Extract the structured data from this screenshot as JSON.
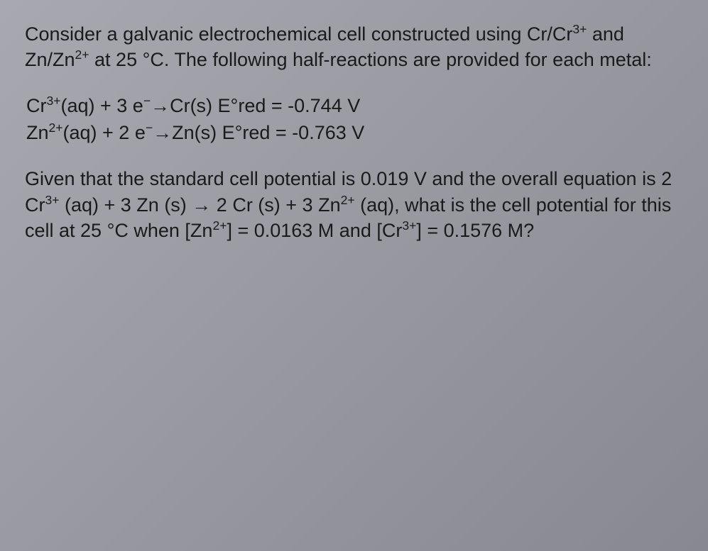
{
  "intro": {
    "p1_part1": "Consider a galvanic electrochemical cell constructed using Cr/Cr",
    "p1_sup1": "3+",
    "p1_part2": " and Zn/Zn",
    "p1_sup2": "2+",
    "p1_part3": " at 25 °C. The following half-reactions are provided for each metal:"
  },
  "reactions": {
    "r1": {
      "species1": "Cr",
      "charge1": "3+",
      "phase1": "(aq) + 3 e",
      "neg1": "−",
      "arrow": " → ",
      "product": "Cr(s) E°red = -0.744 V"
    },
    "r2": {
      "indent": " ",
      "species1": "Zn",
      "charge1": "2+",
      "phase1": "(aq) + 2 e",
      "neg1": "−",
      "arrow": " → ",
      "product": "Zn(s) E°red = -0.763 V"
    }
  },
  "question": {
    "q_part1": "Given that the standard cell potential is 0.019 V and the overall equation is 2 Cr",
    "q_sup1": "3+",
    "q_part2": " (aq) + 3 Zn (s) → 2 Cr (s) + 3 Zn",
    "q_sup2": "2+",
    "q_part3": " (aq), what is the cell potential for this cell at 25 °C when [Zn",
    "q_sup3": "2+",
    "q_part4": "] = 0.0163 M and [Cr",
    "q_sup4": "3+",
    "q_part5": "] = 0.1576 M?"
  },
  "style": {
    "background_start": "#a8a8b0",
    "background_end": "#888890",
    "text_color": "#1a1a1a",
    "font_size_pt": 20,
    "font_family": "Arial"
  }
}
